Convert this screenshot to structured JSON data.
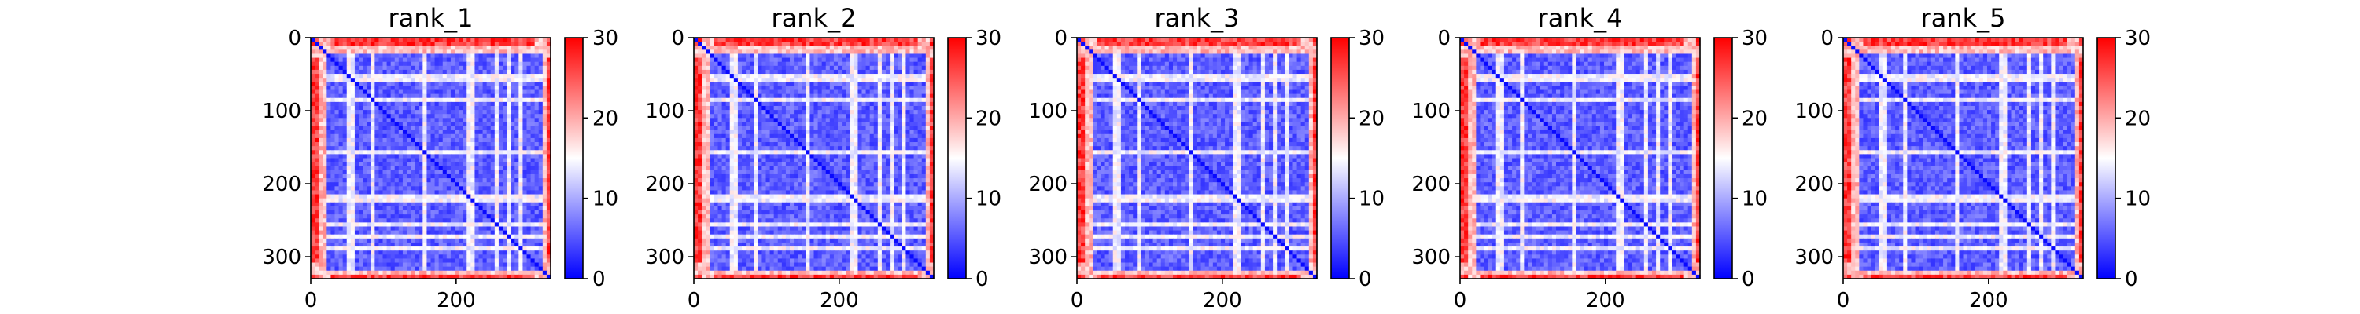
{
  "chart_data": [
    {
      "type": "heatmap",
      "title": "rank_1",
      "xlim": [
        0,
        330
      ],
      "ylim": [
        330,
        0
      ],
      "xticks": [
        "0",
        "200"
      ],
      "xtick_values": [
        0,
        200
      ],
      "yticks": [
        "0",
        "100",
        "200",
        "300"
      ],
      "ytick_values": [
        0,
        100,
        200,
        300
      ],
      "colorbar": {
        "min": 0,
        "max": 30,
        "ticks": [
          "0",
          "10",
          "20",
          "30"
        ],
        "tick_values": [
          0,
          10,
          20,
          30
        ],
        "colormap": [
          "#0000ff",
          "#ffffff",
          "#ff0000"
        ]
      },
      "low_region_range": [
        20,
        318
      ],
      "white_band_rows": [
        55,
        85,
        155,
        220,
        255,
        272,
        290
      ]
    },
    {
      "type": "heatmap",
      "title": "rank_2",
      "xlim": [
        0,
        330
      ],
      "ylim": [
        330,
        0
      ],
      "xticks": [
        "0",
        "200"
      ],
      "xtick_values": [
        0,
        200
      ],
      "yticks": [
        "0",
        "100",
        "200",
        "300"
      ],
      "ytick_values": [
        0,
        100,
        200,
        300
      ],
      "colorbar": {
        "min": 0,
        "max": 30,
        "ticks": [
          "0",
          "10",
          "20",
          "30"
        ],
        "tick_values": [
          0,
          10,
          20,
          30
        ],
        "colormap": [
          "#0000ff",
          "#ffffff",
          "#ff0000"
        ]
      },
      "low_region_range": [
        20,
        318
      ],
      "white_band_rows": [
        55,
        85,
        155,
        220,
        255,
        272,
        290
      ]
    },
    {
      "type": "heatmap",
      "title": "rank_3",
      "xlim": [
        0,
        330
      ],
      "ylim": [
        330,
        0
      ],
      "xticks": [
        "0",
        "200"
      ],
      "xtick_values": [
        0,
        200
      ],
      "yticks": [
        "0",
        "100",
        "200",
        "300"
      ],
      "ytick_values": [
        0,
        100,
        200,
        300
      ],
      "colorbar": {
        "min": 0,
        "max": 30,
        "ticks": [
          "0",
          "10",
          "20",
          "30"
        ],
        "tick_values": [
          0,
          10,
          20,
          30
        ],
        "colormap": [
          "#0000ff",
          "#ffffff",
          "#ff0000"
        ]
      },
      "low_region_range": [
        20,
        318
      ],
      "white_band_rows": [
        55,
        85,
        155,
        220,
        255,
        272,
        290
      ]
    },
    {
      "type": "heatmap",
      "title": "rank_4",
      "xlim": [
        0,
        330
      ],
      "ylim": [
        330,
        0
      ],
      "xticks": [
        "0",
        "200"
      ],
      "xtick_values": [
        0,
        200
      ],
      "yticks": [
        "0",
        "100",
        "200",
        "300"
      ],
      "ytick_values": [
        0,
        100,
        200,
        300
      ],
      "colorbar": {
        "min": 0,
        "max": 30,
        "ticks": [
          "0",
          "10",
          "20",
          "30"
        ],
        "tick_values": [
          0,
          10,
          20,
          30
        ],
        "colormap": [
          "#0000ff",
          "#ffffff",
          "#ff0000"
        ]
      },
      "low_region_range": [
        20,
        318
      ],
      "white_band_rows": [
        55,
        85,
        155,
        220,
        255,
        272,
        290
      ]
    },
    {
      "type": "heatmap",
      "title": "rank_5",
      "xlim": [
        0,
        330
      ],
      "ylim": [
        330,
        0
      ],
      "xticks": [
        "0",
        "200"
      ],
      "xtick_values": [
        0,
        200
      ],
      "yticks": [
        "0",
        "100",
        "200",
        "300"
      ],
      "ytick_values": [
        0,
        100,
        200,
        300
      ],
      "colorbar": {
        "min": 0,
        "max": 30,
        "ticks": [
          "0",
          "10",
          "20",
          "30"
        ],
        "tick_values": [
          0,
          10,
          20,
          30
        ],
        "colormap": [
          "#0000ff",
          "#ffffff",
          "#ff0000"
        ]
      },
      "low_region_range": [
        20,
        318
      ],
      "white_band_rows": [
        55,
        85,
        155,
        220,
        255,
        272,
        290
      ]
    }
  ]
}
